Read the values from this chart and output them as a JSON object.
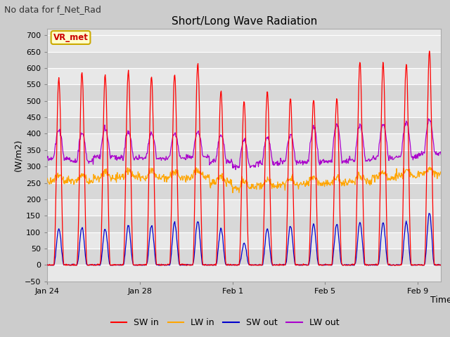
{
  "title": "Short/Long Wave Radiation",
  "xlabel": "Time",
  "ylabel": "(W/m2)",
  "subtitle": "No data for f_Net_Rad",
  "legend_label": "VR_met",
  "ylim": [
    -50,
    720
  ],
  "yticks": [
    -50,
    0,
    50,
    100,
    150,
    200,
    250,
    300,
    350,
    400,
    450,
    500,
    550,
    600,
    650,
    700
  ],
  "date_ticks": [
    "Jan 24",
    "Jan 28",
    "Feb 1",
    "Feb 5",
    "Feb 9"
  ],
  "tick_positions": [
    0,
    4,
    8,
    12,
    16
  ],
  "n_days": 17,
  "colors": {
    "SW_in": "#ff0000",
    "LW_in": "#ffa500",
    "SW_out": "#0000cc",
    "LW_out": "#aa00cc"
  },
  "legend_entries": [
    "SW in",
    "LW in",
    "SW out",
    "LW out"
  ],
  "fig_bg": "#cccccc",
  "plot_bg_light": "#e8e8e8",
  "plot_bg_dark": "#d8d8d8",
  "grid_color": "#ffffff",
  "title_fontsize": 11,
  "label_fontsize": 9,
  "ylabel_fontsize": 9
}
